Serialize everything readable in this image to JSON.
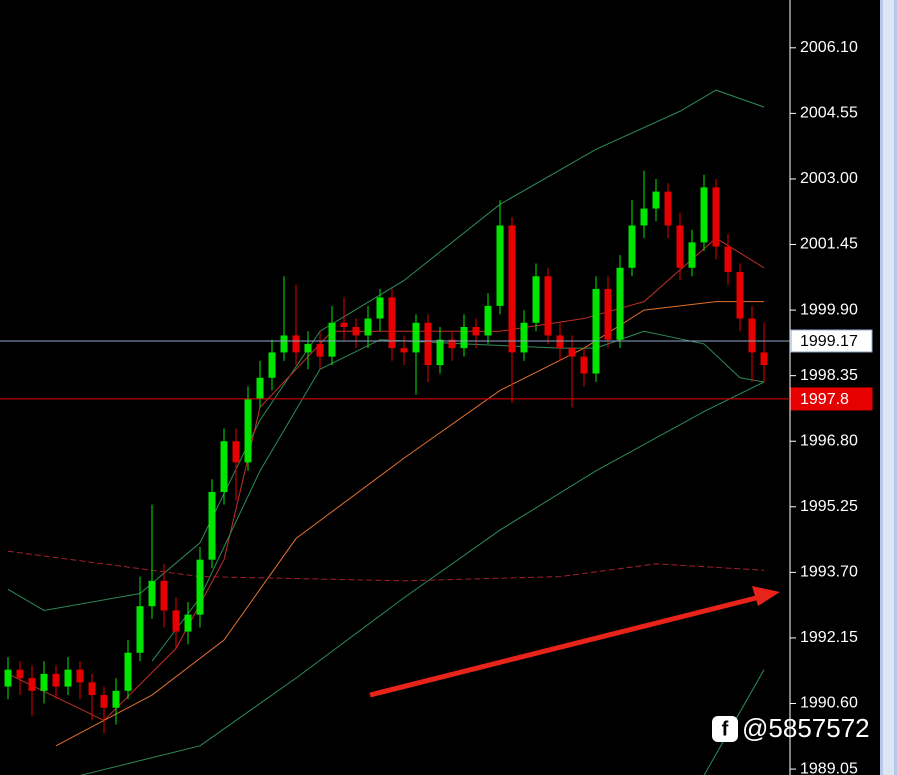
{
  "chart_data": {
    "type": "candlestick",
    "categories": [
      null,
      null,
      null,
      null,
      null,
      null,
      null,
      null,
      null,
      null,
      null,
      null,
      null,
      null,
      null,
      null,
      null,
      null,
      null,
      null,
      null,
      null,
      null,
      null,
      null,
      null,
      null,
      null,
      null,
      null,
      null,
      null,
      null,
      null,
      null,
      null,
      null,
      null,
      null,
      null,
      null,
      null,
      null,
      null,
      null,
      null,
      null,
      null,
      null,
      null,
      null,
      null,
      null,
      null,
      null,
      null,
      null,
      null,
      null,
      null,
      null,
      null,
      null,
      null
    ],
    "open": [
      1991.0,
      1991.4,
      1991.2,
      1990.9,
      1991.3,
      1991.0,
      1991.4,
      1991.1,
      1990.8,
      1990.5,
      1990.9,
      1991.8,
      1992.9,
      1993.5,
      1992.8,
      1992.3,
      1992.7,
      1994.0,
      1995.6,
      1996.8,
      1996.3,
      1997.8,
      1998.3,
      1998.9,
      1999.3,
      1998.9,
      1999.1,
      1998.8,
      1999.6,
      1999.5,
      1999.3,
      1999.7,
      2000.2,
      1999.0,
      1998.9,
      1999.6,
      1998.6,
      1999.2,
      1999.0,
      1999.5,
      1999.3,
      2000.0,
      2001.9,
      1998.9,
      1999.6,
      2000.7,
      1999.3,
      1999.0,
      1998.8,
      1998.4,
      2000.4,
      1999.2,
      2000.9,
      2001.9,
      2002.3,
      2002.7,
      2001.9,
      2000.9,
      2001.5,
      2002.8,
      2001.4,
      2000.8,
      1999.7,
      1998.9
    ],
    "high": [
      1991.7,
      1991.6,
      1991.5,
      1991.6,
      1991.5,
      1991.7,
      1991.6,
      1991.3,
      1991.0,
      1991.2,
      1992.1,
      1993.6,
      1995.3,
      1993.9,
      1993.1,
      1993.0,
      1994.3,
      1995.9,
      1997.1,
      1997.1,
      1998.1,
      1998.7,
      1999.2,
      2000.7,
      2000.5,
      1999.4,
      1999.4,
      2000.0,
      2000.2,
      1999.7,
      2000.0,
      2000.4,
      2000.4,
      1999.3,
      1999.8,
      1999.8,
      1999.5,
      1999.4,
      1999.8,
      1999.7,
      2000.3,
      2002.5,
      2002.1,
      1999.9,
      2001.0,
      2000.9,
      1999.6,
      1999.3,
      1999.0,
      2000.7,
      2000.7,
      2001.2,
      2002.5,
      2003.2,
      2003.0,
      2002.9,
      2002.2,
      2001.8,
      2003.1,
      2003.0,
      2001.7,
      2001.0,
      2000.0,
      1999.6
    ],
    "low": [
      1990.7,
      1990.8,
      1990.3,
      1990.6,
      1990.7,
      1990.8,
      1990.7,
      1990.2,
      1989.9,
      1990.1,
      1990.7,
      1991.6,
      1992.6,
      1992.4,
      1991.9,
      1992.0,
      1992.4,
      1993.8,
      1995.3,
      1995.4,
      1996.1,
      1997.6,
      1998.0,
      1998.7,
      1998.6,
      1998.5,
      1998.5,
      1998.6,
      1999.2,
      1999.0,
      1999.0,
      1999.4,
      1998.7,
      1998.6,
      1997.9,
      1998.2,
      1998.4,
      1998.7,
      1998.8,
      1999.0,
      1999.1,
      1999.8,
      1997.7,
      1998.7,
      1999.4,
      1999.1,
      1998.7,
      1997.6,
      1998.1,
      1998.2,
      1999.0,
      1999.0,
      2000.7,
      2001.6,
      2002.0,
      2001.6,
      2000.6,
      2000.7,
      2001.3,
      2001.1,
      2000.5,
      1999.4,
      1998.2,
      1998.2
    ],
    "close": [
      1991.4,
      1991.2,
      1990.9,
      1991.3,
      1991.0,
      1991.4,
      1991.1,
      1990.8,
      1990.5,
      1990.9,
      1991.8,
      1992.9,
      1993.5,
      1992.8,
      1992.3,
      1992.7,
      1994.0,
      1995.6,
      1996.8,
      1996.3,
      1997.8,
      1998.3,
      1998.9,
      1999.3,
      1998.9,
      1999.1,
      1998.8,
      1999.6,
      1999.5,
      1999.3,
      1999.7,
      2000.2,
      1999.0,
      1998.9,
      1999.6,
      1998.6,
      1999.2,
      1999.0,
      1999.5,
      1999.3,
      2000.0,
      2001.9,
      1998.9,
      1999.6,
      2000.7,
      1999.3,
      1999.0,
      1998.8,
      1998.4,
      2000.4,
      1999.2,
      2000.9,
      2001.9,
      2002.3,
      2002.7,
      2001.9,
      2000.9,
      2001.5,
      2002.8,
      2001.4,
      2000.8,
      1999.7,
      1998.9,
      1998.6
    ],
    "up_color": "#00e600",
    "down_color": "#e60000",
    "overlays": [
      {
        "color": "#2e8b57",
        "x": [
          0,
          3,
          11,
          16,
          21,
          26,
          33,
          41,
          49,
          56,
          59,
          63
        ],
        "values": [
          1993.3,
          1992.8,
          1993.2,
          1994.4,
          1997.3,
          1999.4,
          2000.6,
          2002.4,
          2003.7,
          2004.6,
          2005.1,
          2004.7
        ]
      },
      {
        "color": "#c0302a",
        "x": [
          0,
          8,
          14,
          18,
          21,
          27,
          34,
          41,
          48,
          53,
          59,
          63
        ],
        "values": [
          1991.3,
          1990.2,
          1991.9,
          1994.0,
          1997.6,
          1999.4,
          1999.4,
          1999.4,
          1999.7,
          2000.1,
          2001.6,
          2000.9
        ]
      },
      {
        "color": "#2e8b57",
        "x": [
          12,
          16,
          21,
          26,
          31,
          38,
          46,
          49,
          53,
          58,
          61,
          63
        ],
        "values": [
          1991.6,
          1993.1,
          1996.1,
          1998.5,
          1999.2,
          1999.1,
          1999.0,
          1999.0,
          1999.4,
          1999.1,
          1998.3,
          1998.2
        ]
      },
      {
        "color": "#e07030",
        "x": [
          4,
          12,
          18,
          24,
          33,
          41,
          48,
          53,
          59,
          63
        ],
        "values": [
          1989.6,
          1990.8,
          1992.1,
          1994.5,
          1996.4,
          1998.0,
          1999.0,
          1999.9,
          2000.1,
          2000.1
        ]
      },
      {
        "color": "#2e8b57",
        "x": [
          6,
          16,
          24,
          33,
          41,
          49,
          58,
          63
        ],
        "values": [
          1988.9,
          1989.6,
          1991.2,
          1993.1,
          1994.7,
          1996.1,
          1997.5,
          1998.2
        ]
      },
      {
        "color": "#a02030",
        "dashed": true,
        "x": [
          0,
          8,
          16,
          33,
          46,
          54,
          63
        ],
        "values": [
          1994.2,
          1993.9,
          1993.6,
          1993.5,
          1993.6,
          1993.9,
          1993.75
        ]
      },
      {
        "color": "#2e8b57",
        "x": [
          58,
          63
        ],
        "values": [
          1988.9,
          1991.4
        ]
      }
    ],
    "price_lines": [
      {
        "value": 1999.17,
        "color": "#8fa8c8",
        "box": "#ffffff",
        "text_color": "#000000"
      },
      {
        "value": 1997.8,
        "color": "#e60000",
        "box": "#e60000",
        "text_color": "#ffffff"
      }
    ],
    "ylim": [
      1988.91,
      2007.23
    ],
    "yticks": [
      {
        "value": 2006.1,
        "label": "2006.10"
      },
      {
        "value": 2004.55,
        "label": "2004.55"
      },
      {
        "value": 2003.0,
        "label": "2003.00"
      },
      {
        "value": 2001.45,
        "label": "2001.45"
      },
      {
        "value": 1999.9,
        "label": "1999.90"
      },
      {
        "value": 1998.35,
        "label": "1998.35"
      },
      {
        "value": 1996.8,
        "label": "1996.80"
      },
      {
        "value": 1995.25,
        "label": "1995.25"
      },
      {
        "value": 1993.7,
        "label": "1993.70"
      },
      {
        "value": 1992.15,
        "label": "1992.15"
      },
      {
        "value": 1990.6,
        "label": "1990.60"
      },
      {
        "value": 1989.05,
        "label": "1989.05"
      }
    ],
    "watermark": "@5857572"
  }
}
